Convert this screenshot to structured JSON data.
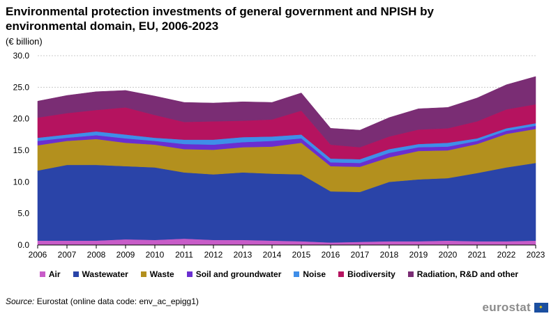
{
  "title": "Environmental protection investments of general government and NPISH by environmental domain, EU, 2006-2023",
  "unit": "(€ billion)",
  "source_label": "Source:",
  "source_text": "Eurostat (online data code: env_ac_epigg1)",
  "logo_text": "eurostat",
  "chart_data": {
    "type": "area",
    "stacked": true,
    "title": "Environmental protection investments of general government and NPISH by environmental domain, EU, 2006-2023",
    "ylabel": "(€ billion)",
    "ylim": [
      0,
      30
    ],
    "yticks": [
      "0.0",
      "5.0",
      "10.0",
      "15.0",
      "20.0",
      "25.0",
      "30.0"
    ],
    "grid": true,
    "legend_position": "bottom",
    "x": [
      "2006",
      "2007",
      "2008",
      "2009",
      "2010",
      "2011",
      "2012",
      "2013",
      "2014",
      "2015",
      "2016",
      "2017",
      "2018",
      "2019",
      "2020",
      "2021",
      "2022",
      "2023"
    ],
    "series": [
      {
        "name": "Air",
        "color": "#c85cc8",
        "values": [
          0.7,
          0.7,
          0.7,
          0.9,
          0.8,
          1.0,
          0.8,
          0.8,
          0.7,
          0.6,
          0.4,
          0.5,
          0.6,
          0.6,
          0.7,
          0.6,
          0.6,
          0.7
        ]
      },
      {
        "name": "Wastewater",
        "color": "#2a44a8",
        "values": [
          11.1,
          12.0,
          12.0,
          11.6,
          11.5,
          10.5,
          10.4,
          10.7,
          10.6,
          10.6,
          8.1,
          7.9,
          9.4,
          9.8,
          9.9,
          10.8,
          11.7,
          12.3
        ]
      },
      {
        "name": "Waste",
        "color": "#b3901e",
        "values": [
          4.0,
          3.8,
          4.1,
          3.7,
          3.6,
          3.7,
          3.9,
          4.0,
          4.3,
          5.0,
          4.0,
          4.0,
          3.9,
          4.5,
          4.4,
          4.6,
          5.3,
          5.4
        ]
      },
      {
        "name": "Soil and groundwater",
        "color": "#6a2ed0",
        "values": [
          0.7,
          0.5,
          0.6,
          0.7,
          0.6,
          0.8,
          0.8,
          0.8,
          0.9,
          0.7,
          0.6,
          0.6,
          0.7,
          0.6,
          0.6,
          0.5,
          0.5,
          0.5
        ]
      },
      {
        "name": "Noise",
        "color": "#3f8ee8",
        "values": [
          0.5,
          0.5,
          0.6,
          0.6,
          0.5,
          0.7,
          0.8,
          0.8,
          0.7,
          0.6,
          0.6,
          0.6,
          0.6,
          0.5,
          0.6,
          0.4,
          0.4,
          0.4
        ]
      },
      {
        "name": "Biodiversity",
        "color": "#b5135f",
        "values": [
          3.2,
          3.4,
          3.4,
          4.3,
          3.6,
          2.8,
          2.9,
          2.6,
          2.7,
          3.8,
          2.2,
          1.9,
          2.0,
          2.3,
          2.3,
          2.7,
          3.0,
          3.0
        ]
      },
      {
        "name": "Radiation, R&D and other",
        "color": "#7a2d74",
        "values": [
          2.6,
          2.8,
          2.9,
          2.7,
          3.0,
          3.1,
          2.9,
          3.0,
          2.7,
          2.8,
          2.6,
          2.7,
          3.0,
          3.3,
          3.3,
          3.7,
          3.9,
          4.4
        ]
      }
    ]
  }
}
